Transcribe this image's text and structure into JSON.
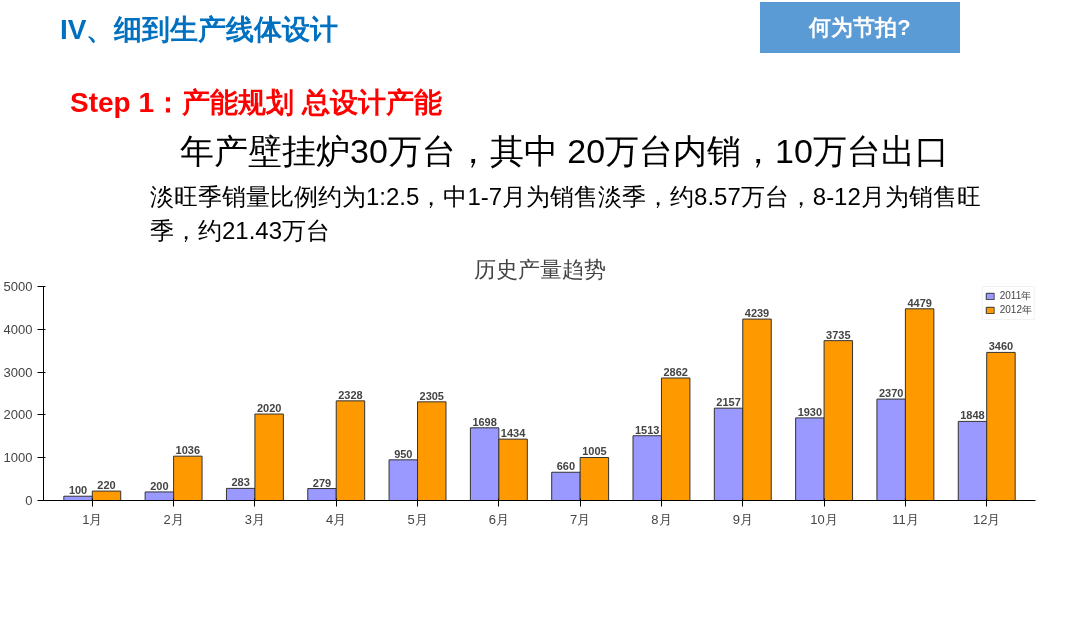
{
  "chart_data": {
    "type": "bar",
    "title": "历史产量趋势",
    "categories": [
      "1月",
      "2月",
      "3月",
      "4月",
      "5月",
      "6月",
      "7月",
      "8月",
      "9月",
      "10月",
      "11月",
      "12月"
    ],
    "series": [
      {
        "name": "2011年",
        "color": "#9999ff",
        "values": [
          100,
          200,
          283,
          279,
          950,
          1698,
          660,
          1513,
          2157,
          1930,
          2370,
          1848
        ]
      },
      {
        "name": "2012年",
        "color": "#ff9900",
        "values": [
          220,
          1036,
          2020,
          2328,
          2305,
          1434,
          1005,
          2862,
          4239,
          3735,
          4479,
          3460
        ]
      }
    ],
    "ylim": [
      0,
      5000
    ],
    "yticks": [
      0,
      1000,
      2000,
      3000,
      4000,
      5000
    ],
    "legend": "top right",
    "data_labels": true,
    "annotations": [
      "IV、细到生产线体设计",
      "何为节拍?",
      "Step 1：产能规划  总设计产能",
      "年产壁挂炉30万台，其中 20万台内销，10万台出口",
      "淡旺季销量比例约为1:2.5，中1-7月为销售淡季，约8.57万台，8-12月为销售旺季，约21.43万台"
    ]
  }
}
